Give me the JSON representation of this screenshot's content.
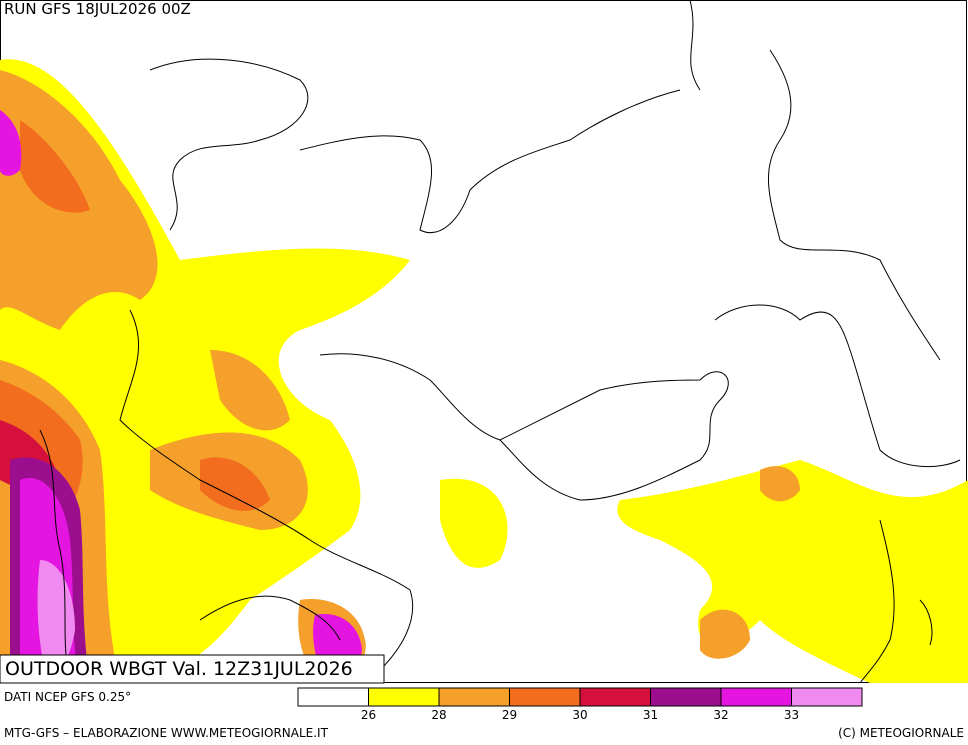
{
  "header": {
    "run": "RUN GFS 18JUL2026 00Z"
  },
  "map": {
    "title": "OUTDOOR WBGT Val. 12Z31JUL2026"
  },
  "footer": {
    "source": "DATI NCEP GFS 0.25°",
    "credit": "MTG-GFS – ELABORAZIONE WWW.METEOGIORNALE.IT",
    "copyright": "(C) METEOGIORNALE"
  },
  "legend": {
    "colors": [
      "#ffffff",
      "#ffff00",
      "#f5a02a",
      "#f26d1d",
      "#d5103c",
      "#9b0f8e",
      "#e415e0",
      "#f08af0"
    ],
    "ticks": [
      26,
      28,
      29,
      30,
      31,
      32,
      33
    ]
  }
}
